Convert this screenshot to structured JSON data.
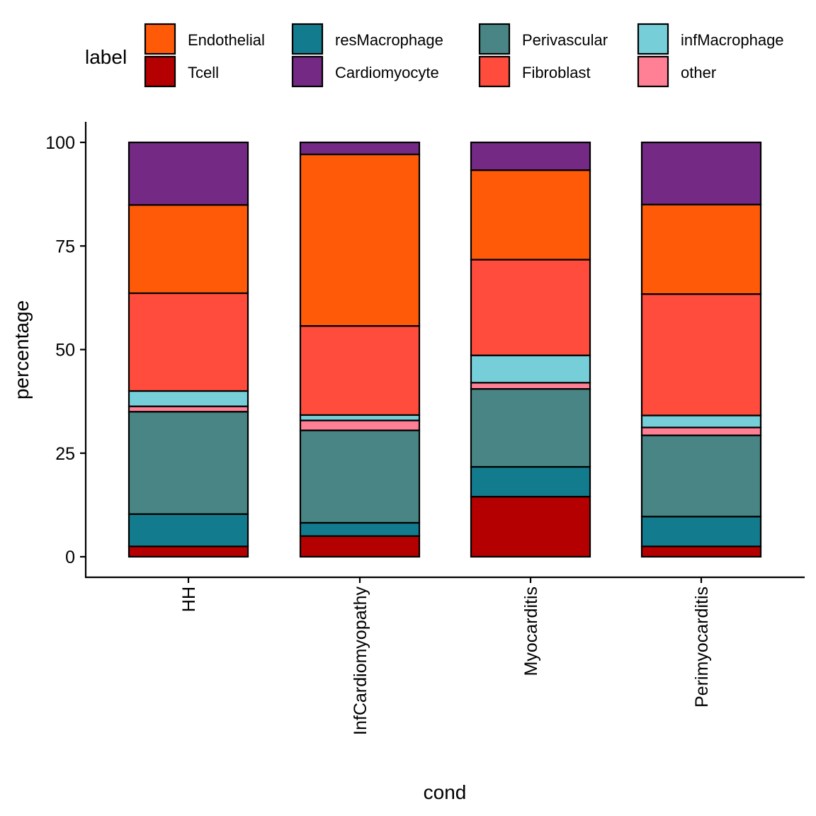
{
  "chart_data": {
    "type": "bar",
    "stacked": true,
    "title": "",
    "xlabel": "cond",
    "ylabel": "percentage",
    "ylim": [
      0,
      100
    ],
    "yticks": [
      0,
      25,
      50,
      75,
      100
    ],
    "categories": [
      "HH",
      "InfCardiomyopathy",
      "Myocarditis",
      "Perimyocarditis"
    ],
    "legend_title": "label",
    "legend_position": "top",
    "series": [
      {
        "name": "Tcell",
        "color": "#B40000",
        "values": [
          2.5,
          5.0,
          14.5,
          2.5
        ]
      },
      {
        "name": "resMacrophage",
        "color": "#127C8E",
        "values": [
          7.8,
          3.2,
          7.2,
          7.2
        ]
      },
      {
        "name": "Perivascular",
        "color": "#4A8585",
        "values": [
          24.7,
          22.3,
          18.8,
          19.6
        ]
      },
      {
        "name": "other",
        "color": "#FF7F94",
        "values": [
          1.3,
          2.4,
          1.5,
          1.9
        ]
      },
      {
        "name": "infMacrophage",
        "color": "#75CED8",
        "values": [
          3.7,
          1.3,
          6.6,
          2.9
        ]
      },
      {
        "name": "Fibroblast",
        "color": "#FF4C3C",
        "values": [
          23.6,
          21.5,
          23.1,
          29.3
        ]
      },
      {
        "name": "Endothelial",
        "color": "#FF5A08",
        "values": [
          21.3,
          41.4,
          21.6,
          21.6
        ]
      },
      {
        "name": "Cardiomyocyte",
        "color": "#742A84",
        "values": [
          15.1,
          2.9,
          6.7,
          15.0
        ]
      }
    ],
    "legend_order": [
      "Endothelial",
      "Tcell",
      "resMacrophage",
      "Cardiomyocyte",
      "Perivascular",
      "Fibroblast",
      "infMacrophage",
      "other"
    ]
  }
}
